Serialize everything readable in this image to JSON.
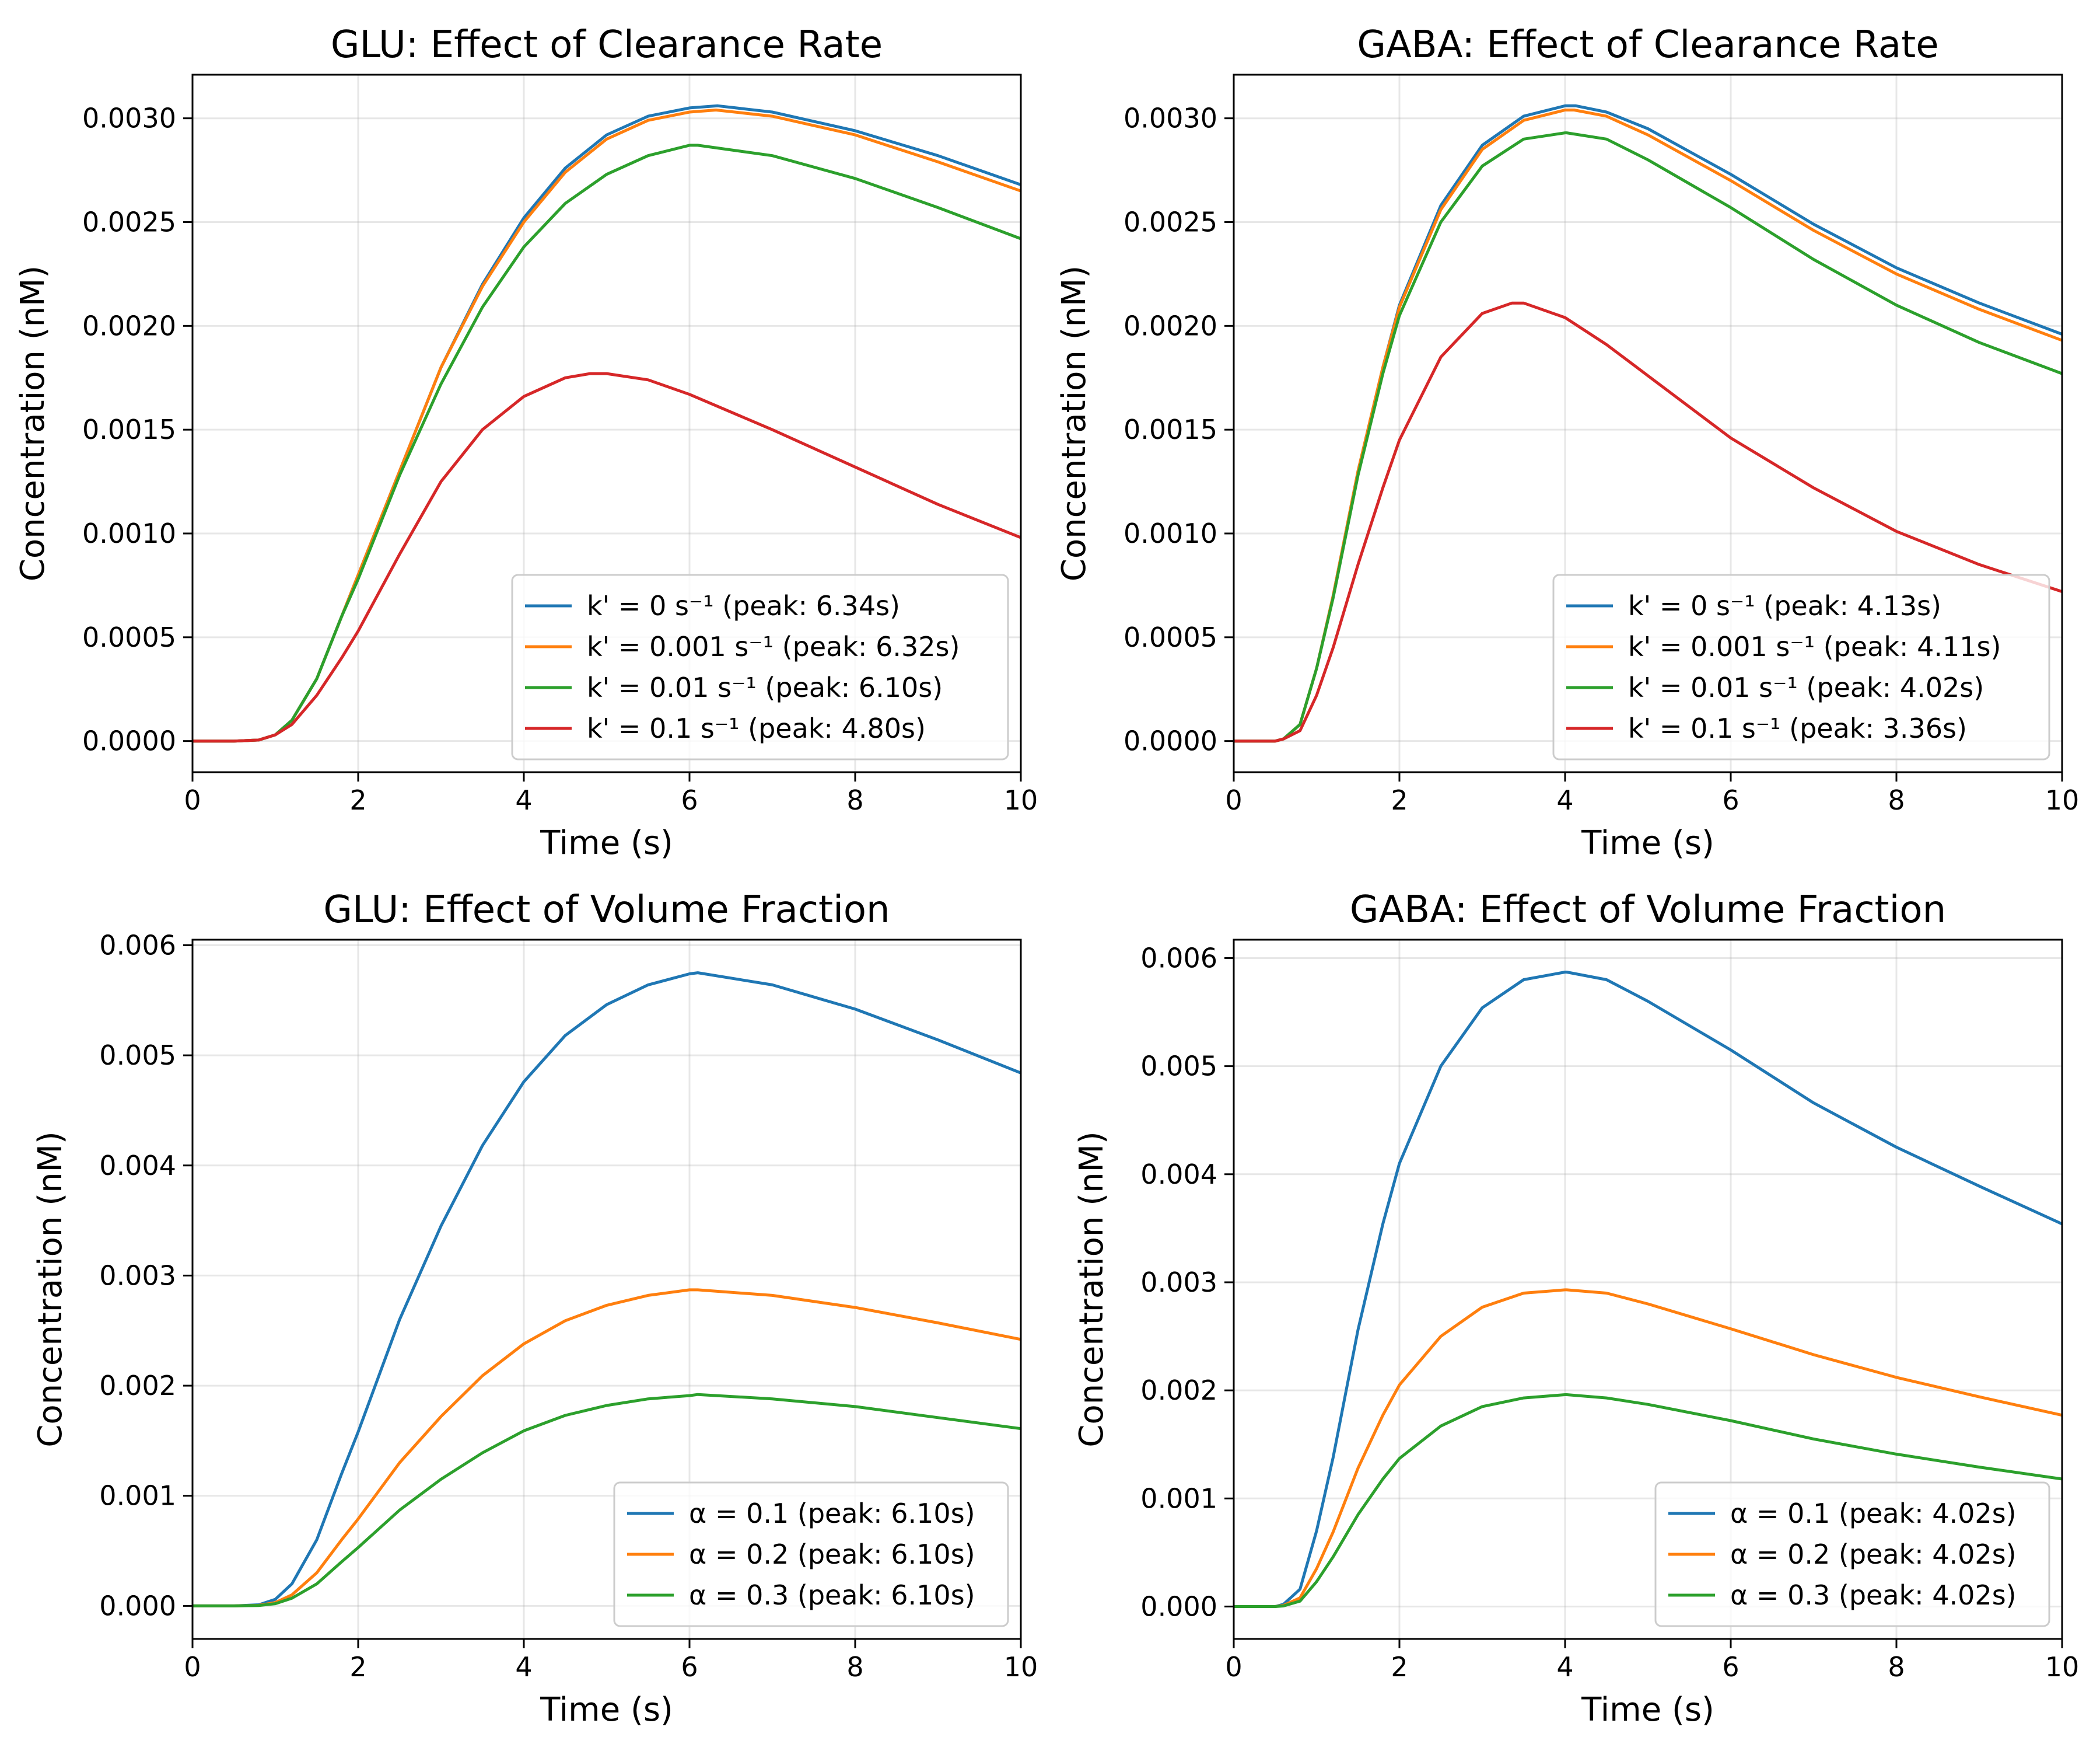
{
  "chart_data": [
    {
      "type": "line",
      "title": "GLU: Effect of Clearance Rate",
      "xlabel": "Time (s)",
      "ylabel": "Concentration (nM)",
      "xlim": [
        0,
        10
      ],
      "ylim": [
        -0.00015,
        0.00321
      ],
      "xticks": [
        0,
        2,
        4,
        6,
        8,
        10
      ],
      "xtick_labels": [
        "0",
        "2",
        "4",
        "6",
        "8",
        "10"
      ],
      "yticks": [
        0,
        0.0005,
        0.001,
        0.0015,
        0.002,
        0.0025,
        0.003
      ],
      "ytick_labels": [
        "0.0000",
        "0.0005",
        "0.0010",
        "0.0015",
        "0.0020",
        "0.0025",
        "0.0030"
      ],
      "grid": true,
      "legend_position": "lower-right",
      "series": [
        {
          "name": "k' = 0 s⁻¹ (peak: 6.34s)",
          "color": "#1f77b4",
          "x": [
            0,
            0.5,
            0.8,
            1.0,
            1.2,
            1.5,
            1.8,
            2.0,
            2.5,
            3.0,
            3.5,
            4.0,
            4.5,
            5.0,
            5.5,
            6.0,
            6.34,
            7.0,
            8.0,
            9.0,
            10.0
          ],
          "y": [
            0,
            0,
            5e-06,
            3e-05,
            0.0001,
            0.0003,
            0.0006,
            0.0008,
            0.0013,
            0.0018,
            0.0022,
            0.00252,
            0.00276,
            0.00292,
            0.00301,
            0.00305,
            0.00306,
            0.00303,
            0.00294,
            0.00282,
            0.00268
          ]
        },
        {
          "name": "k' = 0.001 s⁻¹ (peak: 6.32s)",
          "color": "#ff7f0e",
          "x": [
            0,
            0.5,
            0.8,
            1.0,
            1.2,
            1.5,
            1.8,
            2.0,
            2.5,
            3.0,
            3.5,
            4.0,
            4.5,
            5.0,
            5.5,
            6.0,
            6.32,
            7.0,
            8.0,
            9.0,
            10.0
          ],
          "y": [
            0,
            0,
            5e-06,
            3e-05,
            0.0001,
            0.0003,
            0.0006,
            0.0008,
            0.0013,
            0.0018,
            0.00219,
            0.0025,
            0.00274,
            0.0029,
            0.00299,
            0.00303,
            0.00304,
            0.00301,
            0.00292,
            0.00279,
            0.00265
          ]
        },
        {
          "name": "k' = 0.01 s⁻¹ (peak: 6.10s)",
          "color": "#2ca02c",
          "x": [
            0,
            0.5,
            0.8,
            1.0,
            1.2,
            1.5,
            1.8,
            2.0,
            2.5,
            3.0,
            3.5,
            4.0,
            4.5,
            5.0,
            5.5,
            6.0,
            6.1,
            7.0,
            8.0,
            9.0,
            10.0
          ],
          "y": [
            0,
            0,
            5e-06,
            3e-05,
            0.0001,
            0.0003,
            0.0006,
            0.00078,
            0.00128,
            0.00172,
            0.00209,
            0.00238,
            0.00259,
            0.00273,
            0.00282,
            0.00287,
            0.00287,
            0.00282,
            0.00271,
            0.00257,
            0.00242
          ]
        },
        {
          "name": "k' = 0.1 s⁻¹ (peak: 4.80s)",
          "color": "#d62728",
          "x": [
            0,
            0.5,
            0.8,
            1.0,
            1.2,
            1.5,
            1.8,
            2.0,
            2.5,
            3.0,
            3.5,
            4.0,
            4.5,
            4.8,
            5.0,
            5.5,
            6.0,
            7.0,
            8.0,
            9.0,
            10.0
          ],
          "y": [
            0,
            0,
            5e-06,
            3e-05,
            8e-05,
            0.00022,
            0.0004,
            0.00053,
            0.0009,
            0.00125,
            0.0015,
            0.00166,
            0.00175,
            0.00177,
            0.00177,
            0.00174,
            0.00167,
            0.0015,
            0.00132,
            0.00114,
            0.00098
          ]
        }
      ]
    },
    {
      "type": "line",
      "title": "GABA: Effect of Clearance Rate",
      "xlabel": "Time (s)",
      "ylabel": "Concentration (nM)",
      "xlim": [
        0,
        10
      ],
      "ylim": [
        -0.00015,
        0.00321
      ],
      "xticks": [
        0,
        2,
        4,
        6,
        8,
        10
      ],
      "xtick_labels": [
        "0",
        "2",
        "4",
        "6",
        "8",
        "10"
      ],
      "yticks": [
        0,
        0.0005,
        0.001,
        0.0015,
        0.002,
        0.0025,
        0.003
      ],
      "ytick_labels": [
        "0.0000",
        "0.0005",
        "0.0010",
        "0.0015",
        "0.0020",
        "0.0025",
        "0.0030"
      ],
      "grid": true,
      "legend_position": "lower-right",
      "series": [
        {
          "name": "k' = 0 s⁻¹ (peak: 4.13s)",
          "color": "#1f77b4",
          "x": [
            0,
            0.5,
            0.6,
            0.8,
            1.0,
            1.2,
            1.5,
            1.8,
            2.0,
            2.5,
            3.0,
            3.5,
            4.0,
            4.13,
            4.5,
            5.0,
            6.0,
            7.0,
            8.0,
            9.0,
            10.0
          ],
          "y": [
            0,
            0,
            1e-05,
            8e-05,
            0.00035,
            0.0007,
            0.0013,
            0.0018,
            0.0021,
            0.00258,
            0.00287,
            0.00301,
            0.00306,
            0.00306,
            0.00303,
            0.00295,
            0.00273,
            0.00249,
            0.00228,
            0.00211,
            0.00196
          ]
        },
        {
          "name": "k' = 0.001 s⁻¹ (peak: 4.11s)",
          "color": "#ff7f0e",
          "x": [
            0,
            0.5,
            0.6,
            0.8,
            1.0,
            1.2,
            1.5,
            1.8,
            2.0,
            2.5,
            3.0,
            3.5,
            4.0,
            4.11,
            4.5,
            5.0,
            6.0,
            7.0,
            8.0,
            9.0,
            10.0
          ],
          "y": [
            0,
            0,
            1e-05,
            8e-05,
            0.00035,
            0.0007,
            0.0013,
            0.0018,
            0.00209,
            0.00256,
            0.00285,
            0.00299,
            0.00304,
            0.00304,
            0.00301,
            0.00292,
            0.0027,
            0.00246,
            0.00225,
            0.00208,
            0.00193
          ]
        },
        {
          "name": "k' = 0.01 s⁻¹ (peak: 4.02s)",
          "color": "#2ca02c",
          "x": [
            0,
            0.5,
            0.6,
            0.8,
            1.0,
            1.2,
            1.5,
            1.8,
            2.0,
            2.5,
            3.0,
            3.5,
            4.0,
            4.02,
            4.5,
            5.0,
            6.0,
            7.0,
            8.0,
            9.0,
            10.0
          ],
          "y": [
            0,
            0,
            1e-05,
            8e-05,
            0.00035,
            0.00069,
            0.00128,
            0.00177,
            0.00205,
            0.0025,
            0.00277,
            0.0029,
            0.00293,
            0.00293,
            0.0029,
            0.0028,
            0.00257,
            0.00232,
            0.0021,
            0.00192,
            0.00177
          ]
        },
        {
          "name": "k' = 0.1 s⁻¹ (peak: 3.36s)",
          "color": "#d62728",
          "x": [
            0,
            0.5,
            0.6,
            0.8,
            1.0,
            1.2,
            1.5,
            1.8,
            2.0,
            2.5,
            3.0,
            3.36,
            3.5,
            4.0,
            4.5,
            5.0,
            6.0,
            7.0,
            8.0,
            9.0,
            10.0
          ],
          "y": [
            0,
            0,
            1e-05,
            5e-05,
            0.00022,
            0.00045,
            0.00085,
            0.00122,
            0.00145,
            0.00185,
            0.00206,
            0.00211,
            0.00211,
            0.00204,
            0.00191,
            0.00176,
            0.00146,
            0.00122,
            0.00101,
            0.00085,
            0.00072
          ]
        }
      ]
    },
    {
      "type": "line",
      "title": "GLU: Effect of Volume Fraction",
      "xlabel": "Time (s)",
      "ylabel": "Concentration (nM)",
      "xlim": [
        0,
        10
      ],
      "ylim": [
        -0.0003,
        0.00605
      ],
      "xticks": [
        0,
        2,
        4,
        6,
        8,
        10
      ],
      "xtick_labels": [
        "0",
        "2",
        "4",
        "6",
        "8",
        "10"
      ],
      "yticks": [
        0,
        0.001,
        0.002,
        0.003,
        0.004,
        0.005,
        0.006
      ],
      "ytick_labels": [
        "0.000",
        "0.001",
        "0.002",
        "0.003",
        "0.004",
        "0.005",
        "0.006"
      ],
      "grid": true,
      "legend_position": "lower-right",
      "series": [
        {
          "name": "α = 0.1 (peak: 6.10s)",
          "color": "#1f77b4",
          "x": [
            0,
            0.5,
            0.8,
            1.0,
            1.2,
            1.5,
            1.8,
            2.0,
            2.5,
            3.0,
            3.5,
            4.0,
            4.5,
            5.0,
            5.5,
            6.0,
            6.1,
            7.0,
            8.0,
            9.0,
            10.0
          ],
          "y": [
            0,
            0,
            1e-05,
            6e-05,
            0.0002,
            0.0006,
            0.0012,
            0.00158,
            0.0026,
            0.00345,
            0.00418,
            0.00476,
            0.00518,
            0.00546,
            0.00564,
            0.00574,
            0.00575,
            0.00564,
            0.00542,
            0.00514,
            0.00484
          ]
        },
        {
          "name": "α = 0.2 (peak: 6.10s)",
          "color": "#ff7f0e",
          "x": [
            0,
            0.5,
            0.8,
            1.0,
            1.2,
            1.5,
            1.8,
            2.0,
            2.5,
            3.0,
            3.5,
            4.0,
            4.5,
            5.0,
            5.5,
            6.0,
            6.1,
            7.0,
            8.0,
            9.0,
            10.0
          ],
          "y": [
            0,
            0,
            5e-06,
            3e-05,
            0.0001,
            0.0003,
            0.0006,
            0.00079,
            0.0013,
            0.00172,
            0.00209,
            0.00238,
            0.00259,
            0.00273,
            0.00282,
            0.00287,
            0.00287,
            0.00282,
            0.00271,
            0.00257,
            0.00242
          ]
        },
        {
          "name": "α = 0.3 (peak: 6.10s)",
          "color": "#2ca02c",
          "x": [
            0,
            0.5,
            0.8,
            1.0,
            1.2,
            1.5,
            1.8,
            2.0,
            2.5,
            3.0,
            3.5,
            4.0,
            4.5,
            5.0,
            5.5,
            6.0,
            6.1,
            7.0,
            8.0,
            9.0,
            10.0
          ],
          "y": [
            0,
            0,
            3e-06,
            2e-05,
            7e-05,
            0.0002,
            0.0004,
            0.00053,
            0.00087,
            0.00115,
            0.00139,
            0.00159,
            0.00173,
            0.00182,
            0.00188,
            0.00191,
            0.00192,
            0.00188,
            0.00181,
            0.00171,
            0.00161
          ]
        }
      ]
    },
    {
      "type": "line",
      "title": "GABA: Effect of Volume Fraction",
      "xlabel": "Time (s)",
      "ylabel": "Concentration (nM)",
      "xlim": [
        0,
        10
      ],
      "ylim": [
        -0.0003,
        0.00617
      ],
      "xticks": [
        0,
        2,
        4,
        6,
        8,
        10
      ],
      "xtick_labels": [
        "0",
        "2",
        "4",
        "6",
        "8",
        "10"
      ],
      "yticks": [
        0,
        0.001,
        0.002,
        0.003,
        0.004,
        0.005,
        0.006
      ],
      "ytick_labels": [
        "0.000",
        "0.001",
        "0.002",
        "0.003",
        "0.004",
        "0.005",
        "0.006"
      ],
      "grid": true,
      "legend_position": "lower-right",
      "series": [
        {
          "name": "α = 0.1 (peak: 4.02s)",
          "color": "#1f77b4",
          "x": [
            0,
            0.5,
            0.6,
            0.8,
            1.0,
            1.2,
            1.5,
            1.8,
            2.0,
            2.5,
            3.0,
            3.5,
            4.0,
            4.02,
            4.5,
            5.0,
            6.0,
            7.0,
            8.0,
            9.0,
            10.0
          ],
          "y": [
            0,
            0,
            2e-05,
            0.00016,
            0.0007,
            0.00138,
            0.00256,
            0.00354,
            0.0041,
            0.005,
            0.00554,
            0.0058,
            0.00587,
            0.00587,
            0.0058,
            0.0056,
            0.00515,
            0.00466,
            0.00425,
            0.00389,
            0.00354
          ]
        },
        {
          "name": "α = 0.2 (peak: 4.02s)",
          "color": "#ff7f0e",
          "x": [
            0,
            0.5,
            0.6,
            0.8,
            1.0,
            1.2,
            1.5,
            1.8,
            2.0,
            2.5,
            3.0,
            3.5,
            4.0,
            4.02,
            4.5,
            5.0,
            6.0,
            7.0,
            8.0,
            9.0,
            10.0
          ],
          "y": [
            0,
            0,
            1e-05,
            8e-05,
            0.00035,
            0.00069,
            0.00128,
            0.00177,
            0.00205,
            0.0025,
            0.00277,
            0.0029,
            0.00293,
            0.00293,
            0.0029,
            0.0028,
            0.00257,
            0.00233,
            0.00212,
            0.00194,
            0.00177
          ]
        },
        {
          "name": "α = 0.3 (peak: 4.02s)",
          "color": "#2ca02c",
          "x": [
            0,
            0.5,
            0.6,
            0.8,
            1.0,
            1.2,
            1.5,
            1.8,
            2.0,
            2.5,
            3.0,
            3.5,
            4.0,
            4.02,
            4.5,
            5.0,
            6.0,
            7.0,
            8.0,
            9.0,
            10.0
          ],
          "y": [
            0,
            0,
            5e-06,
            5e-05,
            0.00023,
            0.00046,
            0.00085,
            0.00118,
            0.00137,
            0.00167,
            0.00185,
            0.00193,
            0.00196,
            0.00196,
            0.00193,
            0.00187,
            0.00172,
            0.00155,
            0.00141,
            0.00129,
            0.00118
          ]
        }
      ]
    }
  ]
}
